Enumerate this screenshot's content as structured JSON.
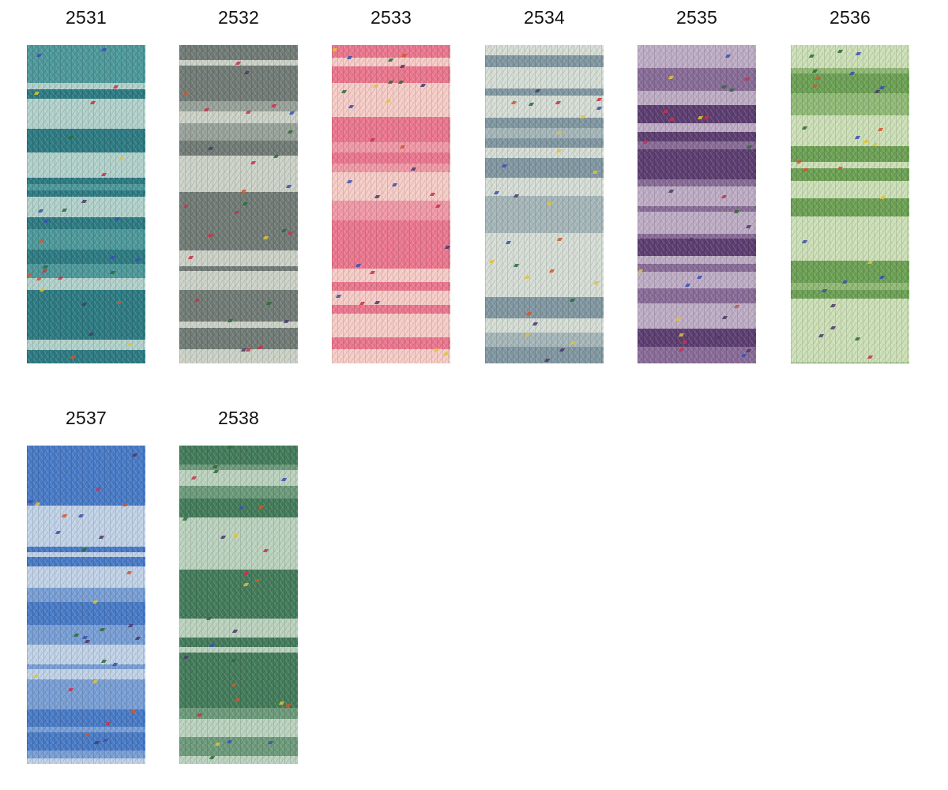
{
  "swatches": [
    {
      "code": "2531",
      "base": "#2f7c84",
      "light": "#b3d2cc",
      "mid": "#4f9a9c"
    },
    {
      "code": "2532",
      "base": "#737d78",
      "light": "#cdd3c8",
      "mid": "#9aa39c"
    },
    {
      "code": "2533",
      "base": "#ec7890",
      "light": "#f7cdc8",
      "mid": "#f19aa8"
    },
    {
      "code": "2534",
      "base": "#8299a3",
      "light": "#d6ded6",
      "mid": "#a7b8bb"
    },
    {
      "code": "2535",
      "base": "#5e4073",
      "light": "#bfaec6",
      "mid": "#8a6e99"
    },
    {
      "code": "2536",
      "base": "#6ea256",
      "light": "#cde0b8",
      "mid": "#92bb78"
    },
    {
      "code": "2537",
      "base": "#4a7cc8",
      "light": "#c2d3e8",
      "mid": "#7aa0d6"
    },
    {
      "code": "2538",
      "base": "#457d5c",
      "light": "#bcd3bf",
      "mid": "#6e9c7c"
    }
  ],
  "fleck_colors": [
    "#c8324a",
    "#3b4fb0",
    "#e0c23a",
    "#d2562e",
    "#4a3a6a",
    "#2e6a3a"
  ]
}
